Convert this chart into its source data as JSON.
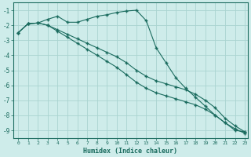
{
  "xlabel": "Humidex (Indice chaleur)",
  "bg_color": "#ceecea",
  "grid_color": "#aad4d0",
  "line_color": "#1a6b5e",
  "spine_color": "#1a6b5e",
  "xlim": [
    -0.5,
    23.3
  ],
  "ylim": [
    -9.5,
    -0.5
  ],
  "yticks": [
    -1,
    -2,
    -3,
    -4,
    -5,
    -6,
    -7,
    -8,
    -9
  ],
  "xticks": [
    0,
    1,
    2,
    3,
    4,
    5,
    6,
    7,
    8,
    9,
    10,
    11,
    12,
    13,
    14,
    15,
    16,
    17,
    18,
    19,
    20,
    21,
    22,
    23
  ],
  "series": [
    {
      "x": [
        0,
        1,
        2,
        3,
        4,
        5,
        6,
        7,
        8,
        9,
        10,
        11,
        12,
        13,
        14,
        15,
        16,
        17,
        18,
        19,
        20,
        21,
        22,
        23
      ],
      "y": [
        -2.5,
        -1.9,
        -1.85,
        -1.6,
        -1.4,
        -1.8,
        -1.8,
        -1.6,
        -1.4,
        -1.3,
        -1.15,
        -1.05,
        -1.0,
        -1.7,
        -3.5,
        -4.5,
        -5.5,
        -6.2,
        -6.8,
        -7.4,
        -8.0,
        -8.5,
        -9.0,
        -9.1
      ]
    },
    {
      "x": [
        0,
        1,
        2,
        3,
        4,
        5,
        6,
        7,
        8,
        9,
        10,
        11,
        12,
        13,
        14,
        15,
        16,
        17,
        18,
        19,
        20,
        21,
        22,
        23
      ],
      "y": [
        -2.5,
        -1.9,
        -1.85,
        -2.0,
        -2.3,
        -2.6,
        -2.9,
        -3.2,
        -3.5,
        -3.8,
        -4.1,
        -4.5,
        -5.0,
        -5.4,
        -5.7,
        -5.9,
        -6.1,
        -6.3,
        -6.6,
        -7.0,
        -7.5,
        -8.2,
        -8.7,
        -9.1
      ]
    },
    {
      "x": [
        0,
        1,
        2,
        3,
        4,
        5,
        6,
        7,
        8,
        9,
        10,
        11,
        12,
        13,
        14,
        15,
        16,
        17,
        18,
        19,
        20,
        21,
        22,
        23
      ],
      "y": [
        -2.5,
        -1.9,
        -1.85,
        -2.0,
        -2.4,
        -2.8,
        -3.2,
        -3.6,
        -4.0,
        -4.4,
        -4.8,
        -5.3,
        -5.8,
        -6.2,
        -6.5,
        -6.7,
        -6.9,
        -7.1,
        -7.3,
        -7.6,
        -8.0,
        -8.5,
        -8.9,
        -9.2
      ]
    }
  ]
}
